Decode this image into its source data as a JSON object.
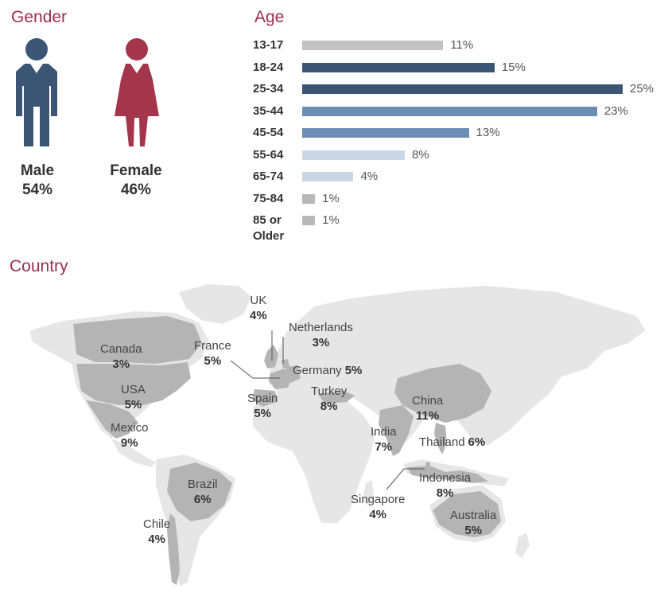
{
  "colors": {
    "title": "#9b2e4e",
    "male": "#3b5675",
    "female": "#a3354d"
  },
  "chart_data": [
    {
      "type": "pictogram",
      "title": "Gender",
      "categories": [
        "Male",
        "Female"
      ],
      "values": [
        54,
        46
      ],
      "labels": [
        "54%",
        "46%"
      ],
      "icons": [
        "male-figure-icon",
        "female-figure-icon"
      ]
    },
    {
      "type": "bar",
      "orientation": "horizontal",
      "title": "Age",
      "categories": [
        "13-17",
        "18-24",
        "25-34",
        "35-44",
        "45-54",
        "55-64",
        "65-74",
        "75-84",
        "85 or Older"
      ],
      "values": [
        11,
        15,
        25,
        23,
        13,
        8,
        4,
        1,
        1
      ],
      "labels": [
        "11%",
        "15%",
        "25%",
        "23%",
        "13%",
        "8%",
        "4%",
        "1%",
        "1%"
      ],
      "bar_colors": [
        "#c3c3c3",
        "#3b5675",
        "#3b5675",
        "#6c8db4",
        "#6c8db4",
        "#c9d6e4",
        "#c9d6e4",
        "#b8b8b8",
        "#b8b8b8"
      ],
      "xlim": [
        0,
        25
      ]
    },
    {
      "type": "map",
      "title": "Country",
      "categories": [
        "UK",
        "Netherlands",
        "Canada",
        "France",
        "Germany",
        "USA",
        "Spain",
        "Turkey",
        "China",
        "Mexico",
        "India",
        "Thailand",
        "Indonesia",
        "Brazil",
        "Singapore",
        "Australia",
        "Chile"
      ],
      "values": [
        4,
        3,
        3,
        5,
        5,
        5,
        5,
        8,
        11,
        9,
        7,
        6,
        8,
        6,
        4,
        5,
        4
      ],
      "labels": [
        "4%",
        "3%",
        "3%",
        "5%",
        "5%",
        "5%",
        "5%",
        "8%",
        "11%",
        "9%",
        "7%",
        "6%",
        "8%",
        "6%",
        "4%",
        "5%",
        "4%"
      ]
    }
  ]
}
